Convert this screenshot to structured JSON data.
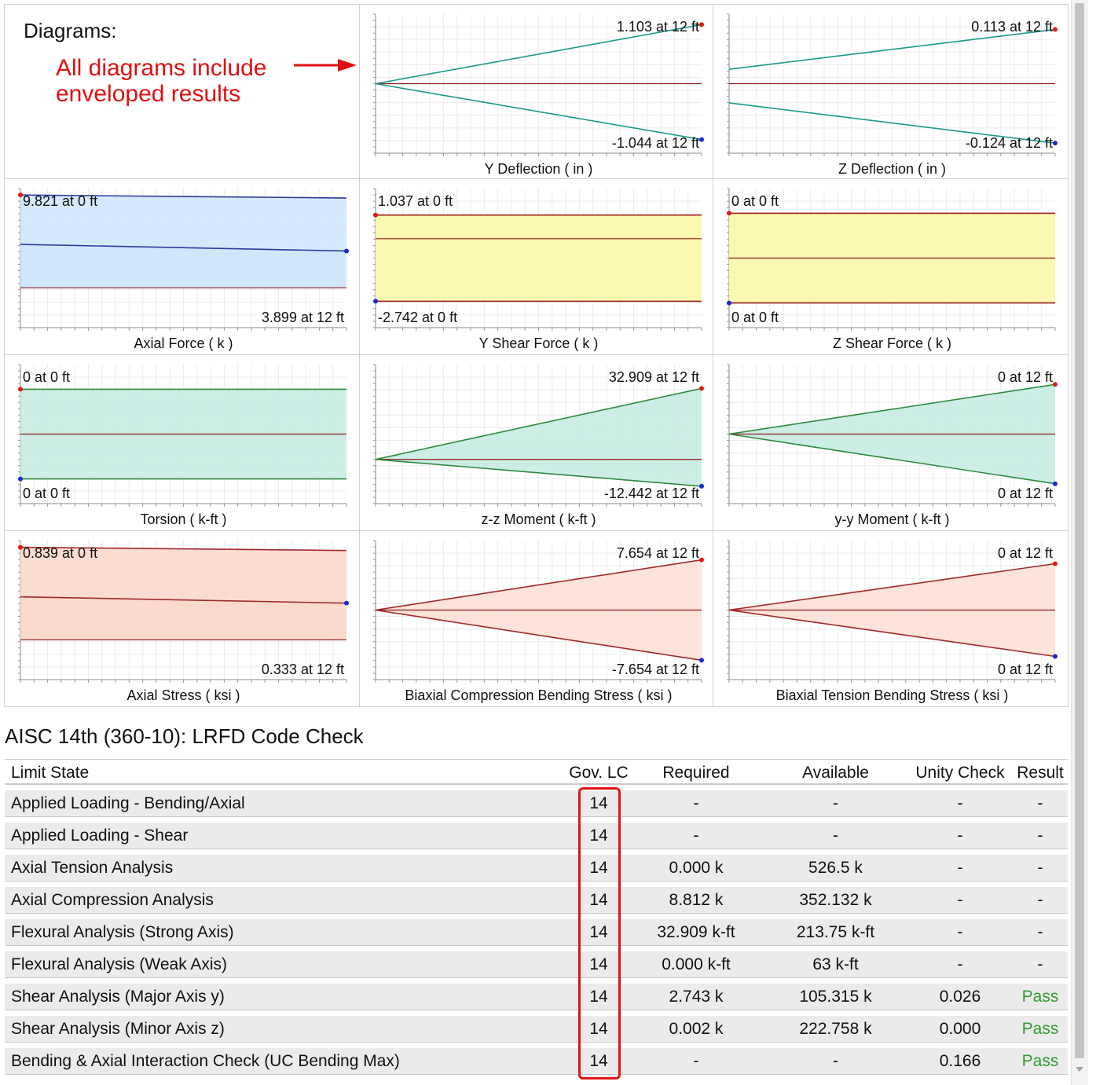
{
  "intro": {
    "heading": "Diagrams:",
    "note_line1": "All diagrams include",
    "note_line2": "enveloped results"
  },
  "chart_data": [
    {
      "type": "line",
      "title": "Y Deflection ( in )",
      "x": [
        0,
        12
      ],
      "series": [
        {
          "values": [
            0,
            1.103
          ]
        },
        {
          "values": [
            0,
            -1.044
          ]
        }
      ],
      "annotations": [
        "1.103 at 12 ft",
        "-1.044 at 12 ft"
      ],
      "fill": false,
      "line_color": "#1a9a8a",
      "fill_color": "none",
      "ylim": [
        -1.3,
        1.3
      ]
    },
    {
      "type": "line",
      "title": "Z Deflection ( in )",
      "x": [
        0,
        12
      ],
      "series": [
        {
          "values": [
            0.03,
            0.113
          ]
        },
        {
          "values": [
            -0.04,
            -0.124
          ]
        }
      ],
      "annotations": [
        "0.113 at 12 ft",
        "-0.124 at 12 ft"
      ],
      "fill": false,
      "line_color": "#1a9a8a",
      "fill_color": "none",
      "ylim": [
        -0.145,
        0.145
      ]
    },
    {
      "type": "area",
      "title": "Axial Force ( k )",
      "x": [
        0,
        12
      ],
      "series": [
        {
          "values": [
            9.821,
            9.5
          ]
        },
        {
          "values": [
            4.6,
            3.899
          ]
        }
      ],
      "annotations": [
        "9.821 at 0 ft",
        "3.899 at 12 ft"
      ],
      "fill": true,
      "line_color": "#2d3a9c",
      "fill_color": "#cfe7fb",
      "ylim": [
        -4.2,
        10.5
      ]
    },
    {
      "type": "area",
      "title": "Y Shear Force ( k )",
      "x": [
        0,
        12
      ],
      "series": [
        {
          "values": [
            1.037,
            1.037
          ]
        },
        {
          "values": [
            -2.742,
            -2.742
          ]
        }
      ],
      "annotations": [
        "1.037 at 0 ft",
        "-2.742 at 0 ft"
      ],
      "fill": true,
      "line_color": "#9a1c1c",
      "fill_color": "#fbf7a8",
      "ylim": [
        -3.9,
        2.2
      ]
    },
    {
      "type": "area",
      "title": "Z Shear Force ( k )",
      "x": [
        0,
        12
      ],
      "series": [
        {
          "values": [
            1,
            1
          ]
        },
        {
          "values": [
            -1,
            -1
          ]
        }
      ],
      "annotations": [
        "0 at 0 ft",
        "0 at 0 ft"
      ],
      "fill": true,
      "line_color": "#9a1c1c",
      "fill_color": "#fbf7a8",
      "ylim": [
        -1.55,
        1.55
      ]
    },
    {
      "type": "area",
      "title": "Torsion ( k-ft )",
      "x": [
        0,
        12
      ],
      "series": [
        {
          "values": [
            1,
            1
          ]
        },
        {
          "values": [
            -1,
            -1
          ]
        }
      ],
      "annotations": [
        "0 at 0 ft",
        "0 at 0 ft"
      ],
      "fill": true,
      "line_color": "#2e8a3e",
      "fill_color": "#c7ece2",
      "ylim": [
        -1.55,
        1.55
      ]
    },
    {
      "type": "area",
      "title": "z-z Moment ( k-ft )",
      "x": [
        0,
        12
      ],
      "series": [
        {
          "values": [
            0,
            32.909
          ]
        },
        {
          "values": [
            0,
            -12.442
          ]
        }
      ],
      "annotations": [
        "32.909 at 12 ft",
        "-12.442 at 12 ft"
      ],
      "fill": true,
      "line_color": "#2e8a3e",
      "fill_color": "#c7ece2",
      "ylim": [
        -20.5,
        44
      ]
    },
    {
      "type": "area",
      "title": "y-y Moment ( k-ft )",
      "x": [
        0,
        12
      ],
      "series": [
        {
          "values": [
            0,
            1
          ]
        },
        {
          "values": [
            0,
            -1
          ]
        }
      ],
      "annotations": [
        "0 at 12 ft",
        "0 at 12 ft"
      ],
      "fill": true,
      "line_color": "#2e8a3e",
      "fill_color": "#c7ece2",
      "ylim": [
        -1.4,
        1.4
      ]
    },
    {
      "type": "area",
      "title": "Axial Stress ( ksi )",
      "x": [
        0,
        12
      ],
      "series": [
        {
          "values": [
            0.839,
            0.81
          ]
        },
        {
          "values": [
            0.39,
            0.333
          ]
        }
      ],
      "annotations": [
        "0.839 at 0 ft",
        "0.333 at 12 ft"
      ],
      "fill": true,
      "line_color": "#a02a2a",
      "fill_color": "#fbd8cc",
      "ylim": [
        -0.36,
        0.9
      ]
    },
    {
      "type": "area",
      "title": "Biaxial Compression Bending Stress ( ksi )",
      "x": [
        0,
        12
      ],
      "series": [
        {
          "values": [
            0,
            7.654
          ]
        },
        {
          "values": [
            0,
            -7.654
          ]
        }
      ],
      "annotations": [
        "7.654 at 12 ft",
        "-7.654 at 12 ft"
      ],
      "fill": true,
      "line_color": "#a02a2a",
      "fill_color": "#fde0d6",
      "ylim": [
        -10.6,
        10.6
      ]
    },
    {
      "type": "area",
      "title": "Biaxial Tension Bending Stress ( ksi )",
      "x": [
        0,
        12
      ],
      "series": [
        {
          "values": [
            0,
            1
          ]
        },
        {
          "values": [
            0,
            -1
          ]
        }
      ],
      "annotations": [
        "0 at 12 ft",
        "0 at 12 ft"
      ],
      "fill": true,
      "line_color": "#a02a2a",
      "fill_color": "#fde0d6",
      "ylim": [
        -1.5,
        1.5
      ]
    }
  ],
  "code_check": {
    "title": "AISC 14th (360-10): LRFD Code Check",
    "headers": {
      "limit_state": "Limit State",
      "gov_lc": "Gov. LC",
      "required": "Required",
      "available": "Available",
      "unity_check": "Unity Check",
      "result": "Result"
    },
    "rows": [
      {
        "limit_state": "Applied Loading - Bending/Axial",
        "gov_lc": "14",
        "required": "-",
        "available": "-",
        "unity_check": "-",
        "result": "-"
      },
      {
        "limit_state": "Applied Loading - Shear",
        "gov_lc": "14",
        "required": "-",
        "available": "-",
        "unity_check": "-",
        "result": "-"
      },
      {
        "limit_state": "Axial Tension Analysis",
        "gov_lc": "14",
        "required": "0.000 k",
        "available": "526.5 k",
        "unity_check": "-",
        "result": "-"
      },
      {
        "limit_state": "Axial Compression Analysis",
        "gov_lc": "14",
        "required": "8.812 k",
        "available": "352.132 k",
        "unity_check": "-",
        "result": "-"
      },
      {
        "limit_state": "Flexural Analysis (Strong Axis)",
        "gov_lc": "14",
        "required": "32.909 k-ft",
        "available": "213.75 k-ft",
        "unity_check": "-",
        "result": "-"
      },
      {
        "limit_state": "Flexural Analysis (Weak Axis)",
        "gov_lc": "14",
        "required": "0.000 k-ft",
        "available": "63 k-ft",
        "unity_check": "-",
        "result": "-"
      },
      {
        "limit_state": "Shear Analysis (Major Axis y)",
        "gov_lc": "14",
        "required": "2.743 k",
        "available": "105.315 k",
        "unity_check": "0.026",
        "result": "Pass"
      },
      {
        "limit_state": "Shear Analysis (Minor Axis z)",
        "gov_lc": "14",
        "required": "0.002 k",
        "available": "222.758 k",
        "unity_check": "0.000",
        "result": "Pass"
      },
      {
        "limit_state": "Bending & Axial Interaction Check (UC Bending Max)",
        "gov_lc": "14",
        "required": "-",
        "available": "-",
        "unity_check": "0.166",
        "result": "Pass"
      }
    ],
    "pass_color": "#2e9a2e",
    "highlight_color": "#e01515"
  }
}
